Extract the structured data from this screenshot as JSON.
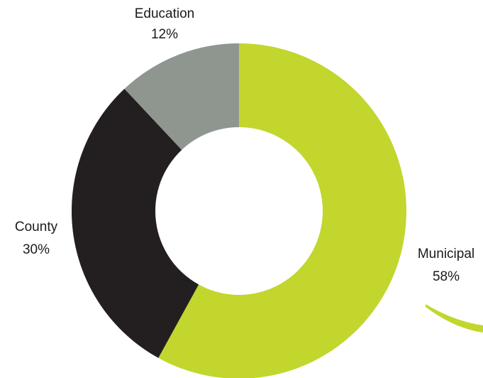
{
  "chart_data": {
    "type": "pie",
    "donut": true,
    "title": "",
    "slices": [
      {
        "label": "Municipal",
        "value": 58,
        "value_label": "58%",
        "color": "#c2d62e"
      },
      {
        "label": "County",
        "value": 30,
        "value_label": "30%",
        "color": "#231f20"
      },
      {
        "label": "Education",
        "value": 12,
        "value_label": "12%",
        "color": "#8f9690"
      }
    ],
    "start": "top",
    "direction": "clockwise",
    "legend": "none",
    "labels": "outside"
  }
}
